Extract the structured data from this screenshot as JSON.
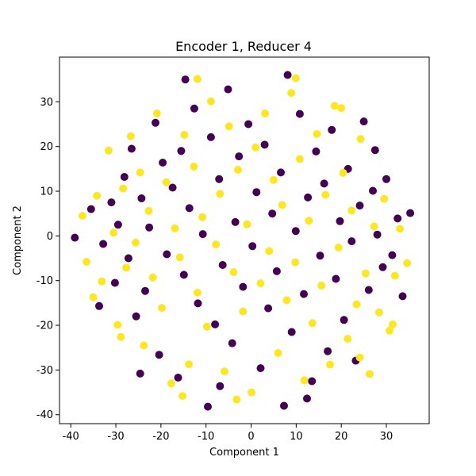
{
  "chart_data": {
    "type": "scatter",
    "title": "Encoder 1, Reducer 4",
    "xlabel": "Component 1",
    "ylabel": "Component 2",
    "xlim": [
      -42.5,
      39.5
    ],
    "ylim": [
      -42.0,
      40.0
    ],
    "x_ticks": [
      -40,
      -30,
      -20,
      -10,
      0,
      10,
      20,
      30
    ],
    "y_ticks": [
      -40,
      -30,
      -20,
      -10,
      0,
      10,
      20,
      30
    ],
    "grid": false,
    "legend": "none",
    "colors": {
      "class_0": "#440154",
      "class_1": "#fde725"
    },
    "series": [
      {
        "values": [
          [
            -39.1,
            -0.4
          ],
          [
            -35.5,
            6.0
          ],
          [
            -32.8,
            -1.8
          ],
          [
            -31.0,
            7.5
          ],
          [
            -30.2,
            -10.5
          ],
          [
            -29.5,
            2.5
          ],
          [
            -28.1,
            13.2
          ],
          [
            -27.2,
            -5.0
          ],
          [
            -26.5,
            19.5
          ],
          [
            -25.5,
            -18.0
          ],
          [
            -24.3,
            8.4
          ],
          [
            -23.5,
            -12.3
          ],
          [
            -22.6,
            1.9
          ],
          [
            -21.2,
            25.3
          ],
          [
            -20.4,
            -26.6
          ],
          [
            -19.6,
            16.4
          ],
          [
            -18.7,
            -4.1
          ],
          [
            -17.4,
            10.8
          ],
          [
            -16.2,
            -31.7
          ],
          [
            -15.5,
            19.0
          ],
          [
            -14.9,
            -8.7
          ],
          [
            -13.7,
            6.2
          ],
          [
            -12.6,
            28.5
          ],
          [
            -11.8,
            -15.1
          ],
          [
            -10.7,
            0.4
          ],
          [
            -9.6,
            -38.2
          ],
          [
            -8.9,
            22.1
          ],
          [
            -8.0,
            -19.8
          ],
          [
            -7.1,
            12.7
          ],
          [
            -6.3,
            -6.5
          ],
          [
            -5.1,
            32.8
          ],
          [
            -4.2,
            -24.0
          ],
          [
            -3.5,
            3.1
          ],
          [
            -2.7,
            17.8
          ],
          [
            -1.8,
            -11.4
          ],
          [
            -0.6,
            25.0
          ],
          [
            0.3,
            -2.3
          ],
          [
            1.2,
            9.8
          ],
          [
            2.1,
            -29.6
          ],
          [
            3.0,
            20.4
          ],
          [
            3.8,
            -16.2
          ],
          [
            4.7,
            5.0
          ],
          [
            5.7,
            -7.9
          ],
          [
            6.6,
            14.2
          ],
          [
            7.3,
            -38.0
          ],
          [
            8.1,
            36.0
          ],
          [
            9.0,
            -21.5
          ],
          [
            9.9,
            1.1
          ],
          [
            10.8,
            27.3
          ],
          [
            11.7,
            -13.0
          ],
          [
            12.6,
            8.6
          ],
          [
            13.5,
            -32.5
          ],
          [
            14.4,
            18.9
          ],
          [
            15.3,
            -4.4
          ],
          [
            16.2,
            11.7
          ],
          [
            17.0,
            -25.8
          ],
          [
            17.9,
            23.7
          ],
          [
            18.8,
            -9.6
          ],
          [
            19.7,
            3.3
          ],
          [
            20.6,
            -18.8
          ],
          [
            21.5,
            15.0
          ],
          [
            22.3,
            -1.2
          ],
          [
            23.2,
            -27.9
          ],
          [
            24.1,
            6.8
          ],
          [
            25.0,
            25.6
          ],
          [
            26.1,
            -12.1
          ],
          [
            27.0,
            10.1
          ],
          [
            28.0,
            0.3
          ],
          [
            29.2,
            -7.0
          ],
          [
            30.0,
            12.7
          ],
          [
            31.3,
            -4.3
          ],
          [
            32.5,
            3.9
          ],
          [
            33.6,
            -13.5
          ],
          [
            35.3,
            5.1
          ],
          [
            -33.7,
            -15.7
          ],
          [
            -14.6,
            35.0
          ],
          [
            -24.6,
            -30.8
          ],
          [
            -6.9,
            -33.6
          ],
          [
            12.4,
            -36.4
          ],
          [
            27.5,
            19.2
          ]
        ]
      },
      {
        "values": [
          [
            -37.4,
            4.5
          ],
          [
            -36.5,
            -5.8
          ],
          [
            -34.2,
            9.0
          ],
          [
            -33.1,
            -10.2
          ],
          [
            -31.6,
            19.1
          ],
          [
            -30.5,
            0.7
          ],
          [
            -29.6,
            -19.9
          ],
          [
            -28.4,
            10.6
          ],
          [
            -27.7,
            -7.1
          ],
          [
            -26.7,
            22.3
          ],
          [
            -25.6,
            -1.5
          ],
          [
            -24.6,
            14.2
          ],
          [
            -23.8,
            -24.5
          ],
          [
            -22.7,
            5.6
          ],
          [
            -21.8,
            -9.3
          ],
          [
            -20.9,
            27.4
          ],
          [
            -19.8,
            -16.1
          ],
          [
            -18.8,
            12.0
          ],
          [
            -17.7,
            -33.0
          ],
          [
            -16.9,
            1.7
          ],
          [
            -15.8,
            -4.8
          ],
          [
            -14.8,
            22.6
          ],
          [
            -13.8,
            -28.7
          ],
          [
            -12.7,
            15.5
          ],
          [
            -11.9,
            -12.7
          ],
          [
            -10.8,
            4.2
          ],
          [
            -9.8,
            -20.3
          ],
          [
            -8.9,
            30.1
          ],
          [
            -7.8,
            -1.9
          ],
          [
            -6.9,
            9.4
          ],
          [
            -5.9,
            -30.3
          ],
          [
            -4.9,
            24.5
          ],
          [
            -3.9,
            -8.1
          ],
          [
            -2.9,
            14.8
          ],
          [
            -1.8,
            -16.9
          ],
          [
            -0.9,
            2.6
          ],
          [
            0.1,
            -35.0
          ],
          [
            1.0,
            19.8
          ],
          [
            2.1,
            -10.6
          ],
          [
            3.1,
            27.4
          ],
          [
            4.0,
            -3.4
          ],
          [
            5.0,
            12.5
          ],
          [
            6.0,
            -26.2
          ],
          [
            6.9,
            6.9
          ],
          [
            7.9,
            -14.4
          ],
          [
            8.9,
            32.0
          ],
          [
            9.8,
            -5.9
          ],
          [
            10.8,
            17.2
          ],
          [
            11.8,
            -32.3
          ],
          [
            12.8,
            3.4
          ],
          [
            13.6,
            -19.5
          ],
          [
            14.6,
            22.8
          ],
          [
            15.6,
            -11.1
          ],
          [
            16.5,
            9.2
          ],
          [
            17.5,
            -28.8
          ],
          [
            18.5,
            29.1
          ],
          [
            19.4,
            -2.6
          ],
          [
            20.4,
            14.1
          ],
          [
            21.4,
            -23.0
          ],
          [
            22.3,
            5.7
          ],
          [
            23.4,
            -15.3
          ],
          [
            24.3,
            21.7
          ],
          [
            25.4,
            -8.4
          ],
          [
            26.3,
            -30.9
          ],
          [
            27.3,
            2.1
          ],
          [
            28.4,
            -17.1
          ],
          [
            29.5,
            8.3
          ],
          [
            30.7,
            -21.2
          ],
          [
            31.9,
            -8.9
          ],
          [
            33.0,
            1.6
          ],
          [
            34.6,
            -6.1
          ],
          [
            -35.0,
            -13.7
          ],
          [
            -11.9,
            35.1
          ],
          [
            -15.2,
            -35.8
          ],
          [
            9.9,
            35.3
          ],
          [
            24.1,
            -27.2
          ],
          [
            -3.2,
            -36.6
          ],
          [
            31.4,
            -19.8
          ],
          [
            -28.9,
            -22.6
          ],
          [
            20.0,
            28.6
          ]
        ]
      }
    ]
  }
}
